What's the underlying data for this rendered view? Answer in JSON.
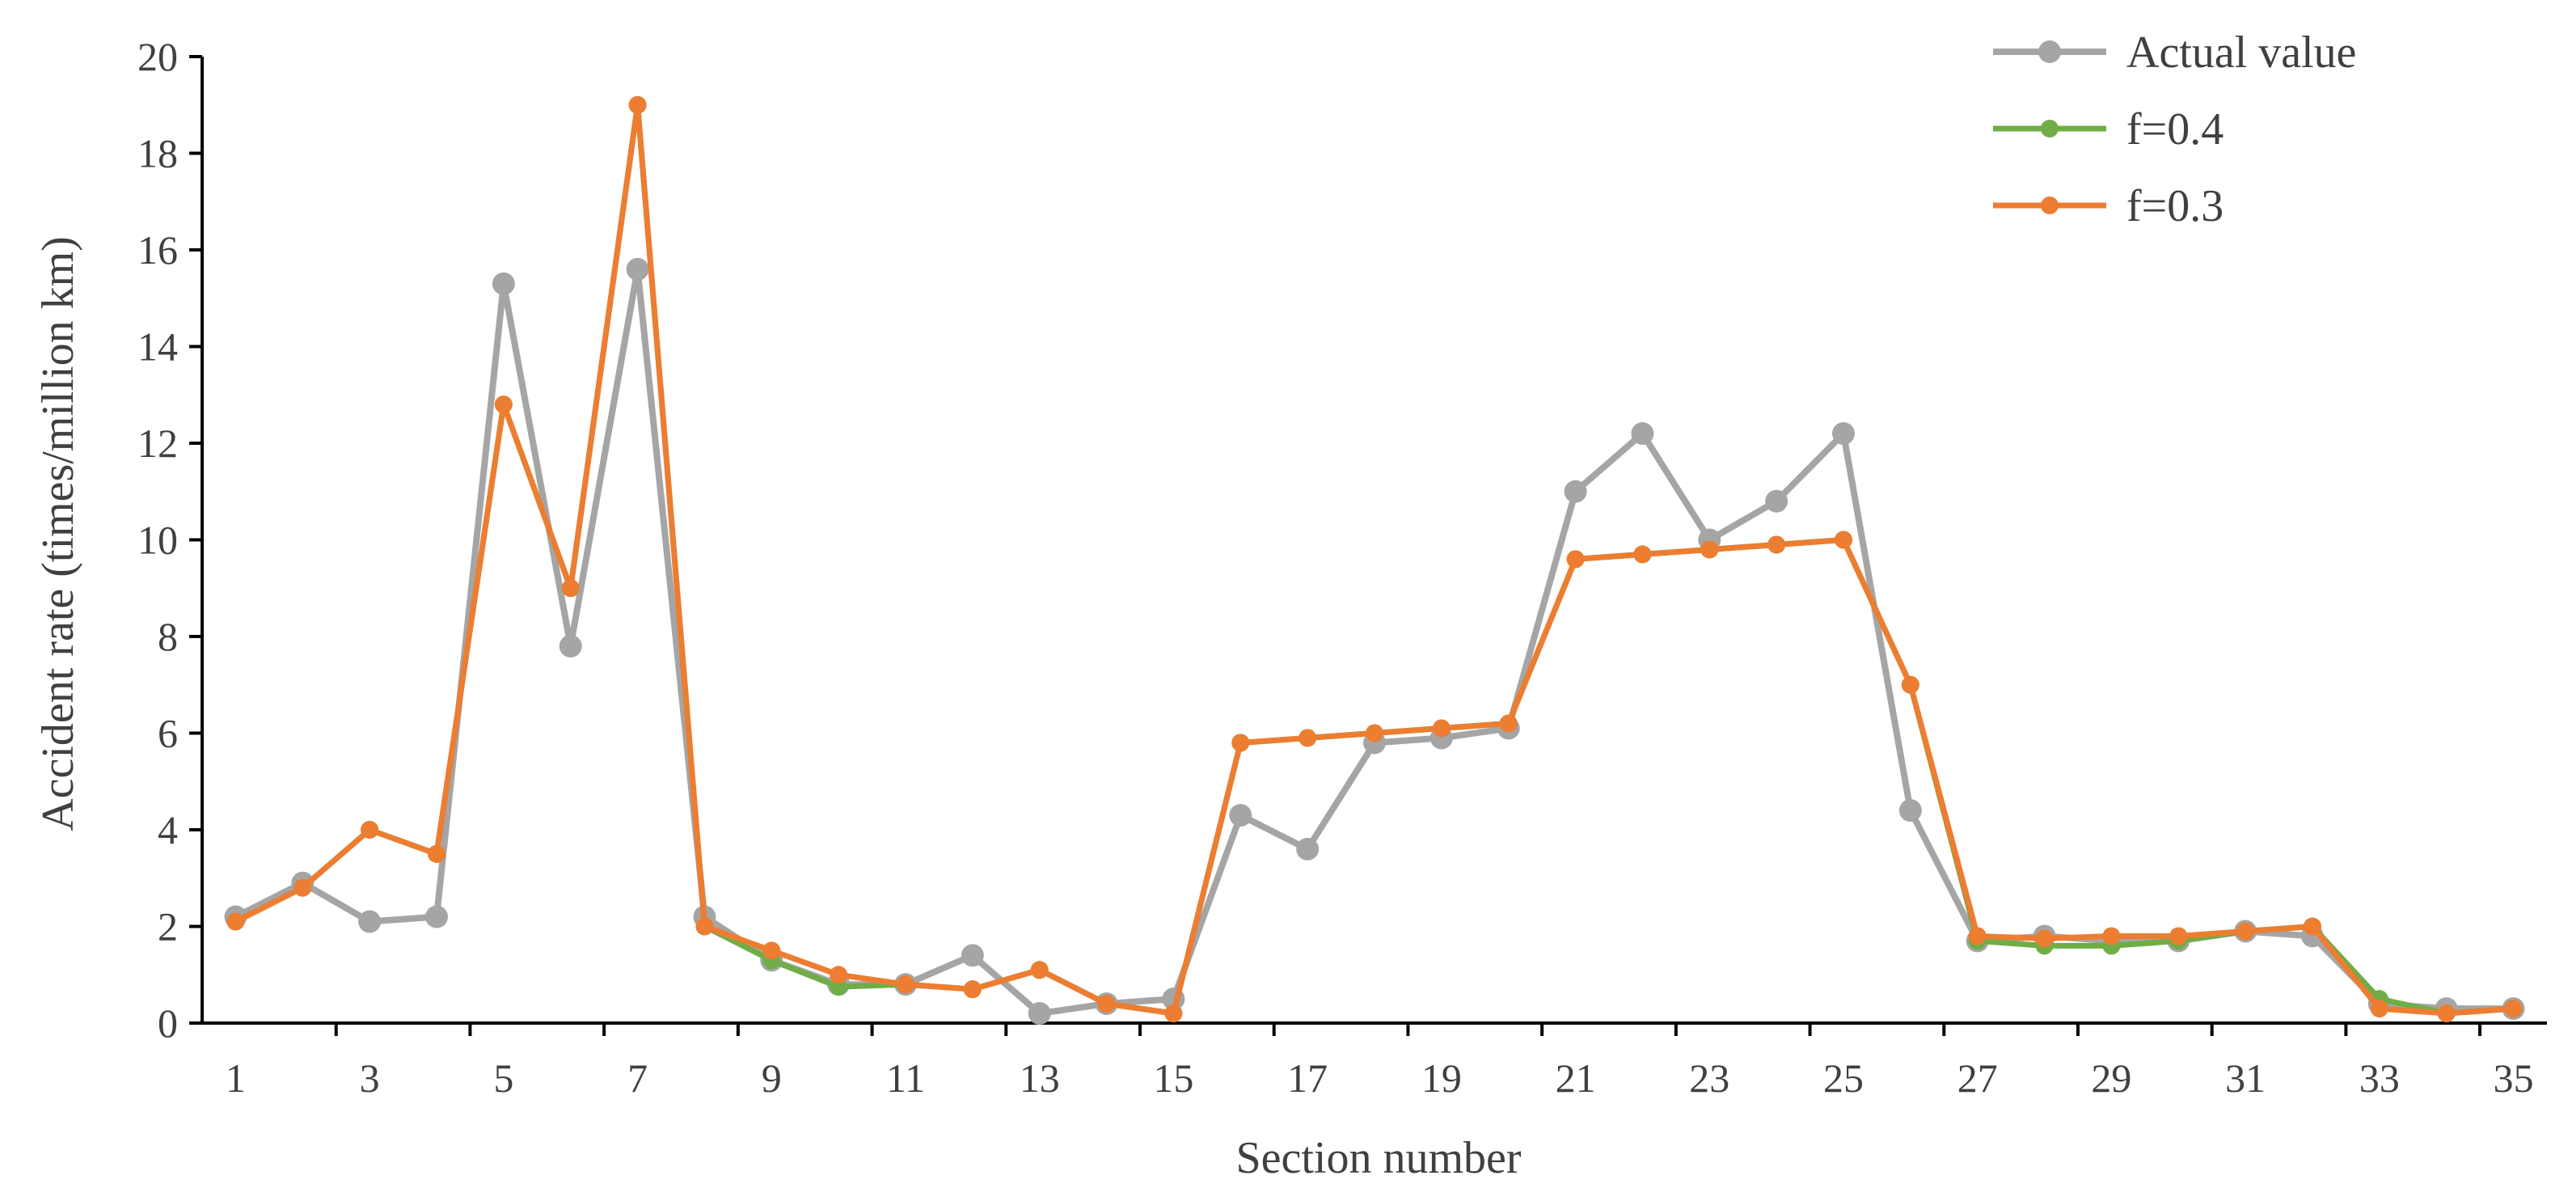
{
  "chart_data": {
    "type": "line",
    "title": "",
    "xlabel": "Section number",
    "ylabel": "Accident rate (times/million km)",
    "x": [
      1,
      2,
      3,
      4,
      5,
      6,
      7,
      8,
      9,
      10,
      11,
      12,
      13,
      14,
      15,
      16,
      17,
      18,
      19,
      20,
      21,
      22,
      23,
      24,
      25,
      26,
      27,
      28,
      29,
      30,
      31,
      32,
      33,
      34,
      35
    ],
    "x_tick_labels": [
      "1",
      "3",
      "5",
      "7",
      "9",
      "11",
      "13",
      "15",
      "17",
      "19",
      "21",
      "23",
      "25",
      "27",
      "29",
      "31",
      "33",
      "35"
    ],
    "xlim": [
      1,
      35
    ],
    "ylim": [
      0,
      20
    ],
    "y_ticks": [
      0,
      2,
      4,
      6,
      8,
      10,
      12,
      14,
      16,
      18,
      20
    ],
    "grid": false,
    "legend_position": "top-right",
    "series": [
      {
        "name": "Actual value",
        "color": "#A5A5A5",
        "values": [
          2.2,
          2.9,
          2.1,
          2.2,
          15.3,
          7.8,
          15.6,
          2.2,
          1.3,
          0.8,
          0.8,
          1.4,
          0.2,
          0.4,
          0.5,
          4.3,
          3.6,
          5.8,
          5.9,
          6.1,
          11.0,
          12.2,
          10.0,
          10.8,
          12.2,
          4.4,
          1.7,
          1.8,
          1.7,
          1.7,
          1.9,
          1.8,
          0.4,
          0.3,
          0.3
        ]
      },
      {
        "name": "f=0.4",
        "color": "#70AD47",
        "values": [
          2.1,
          2.8,
          4.0,
          3.5,
          12.8,
          9.0,
          19.0,
          2.0,
          1.3,
          0.75,
          0.8,
          0.7,
          1.1,
          0.4,
          0.2,
          5.8,
          5.9,
          6.0,
          6.1,
          6.2,
          9.6,
          9.7,
          9.8,
          9.9,
          10.0,
          7.0,
          1.7,
          1.6,
          1.6,
          1.7,
          1.9,
          2.0,
          0.5,
          0.2,
          0.3
        ]
      },
      {
        "name": "f=0.3",
        "color": "#ED7D31",
        "values": [
          2.1,
          2.8,
          4.0,
          3.5,
          12.8,
          9.0,
          19.0,
          2.0,
          1.5,
          1.0,
          0.8,
          0.7,
          1.1,
          0.4,
          0.2,
          5.8,
          5.9,
          6.0,
          6.1,
          6.2,
          9.6,
          9.7,
          9.8,
          9.9,
          10.0,
          7.0,
          1.8,
          1.75,
          1.8,
          1.8,
          1.9,
          2.0,
          0.3,
          0.2,
          0.3
        ]
      }
    ]
  }
}
